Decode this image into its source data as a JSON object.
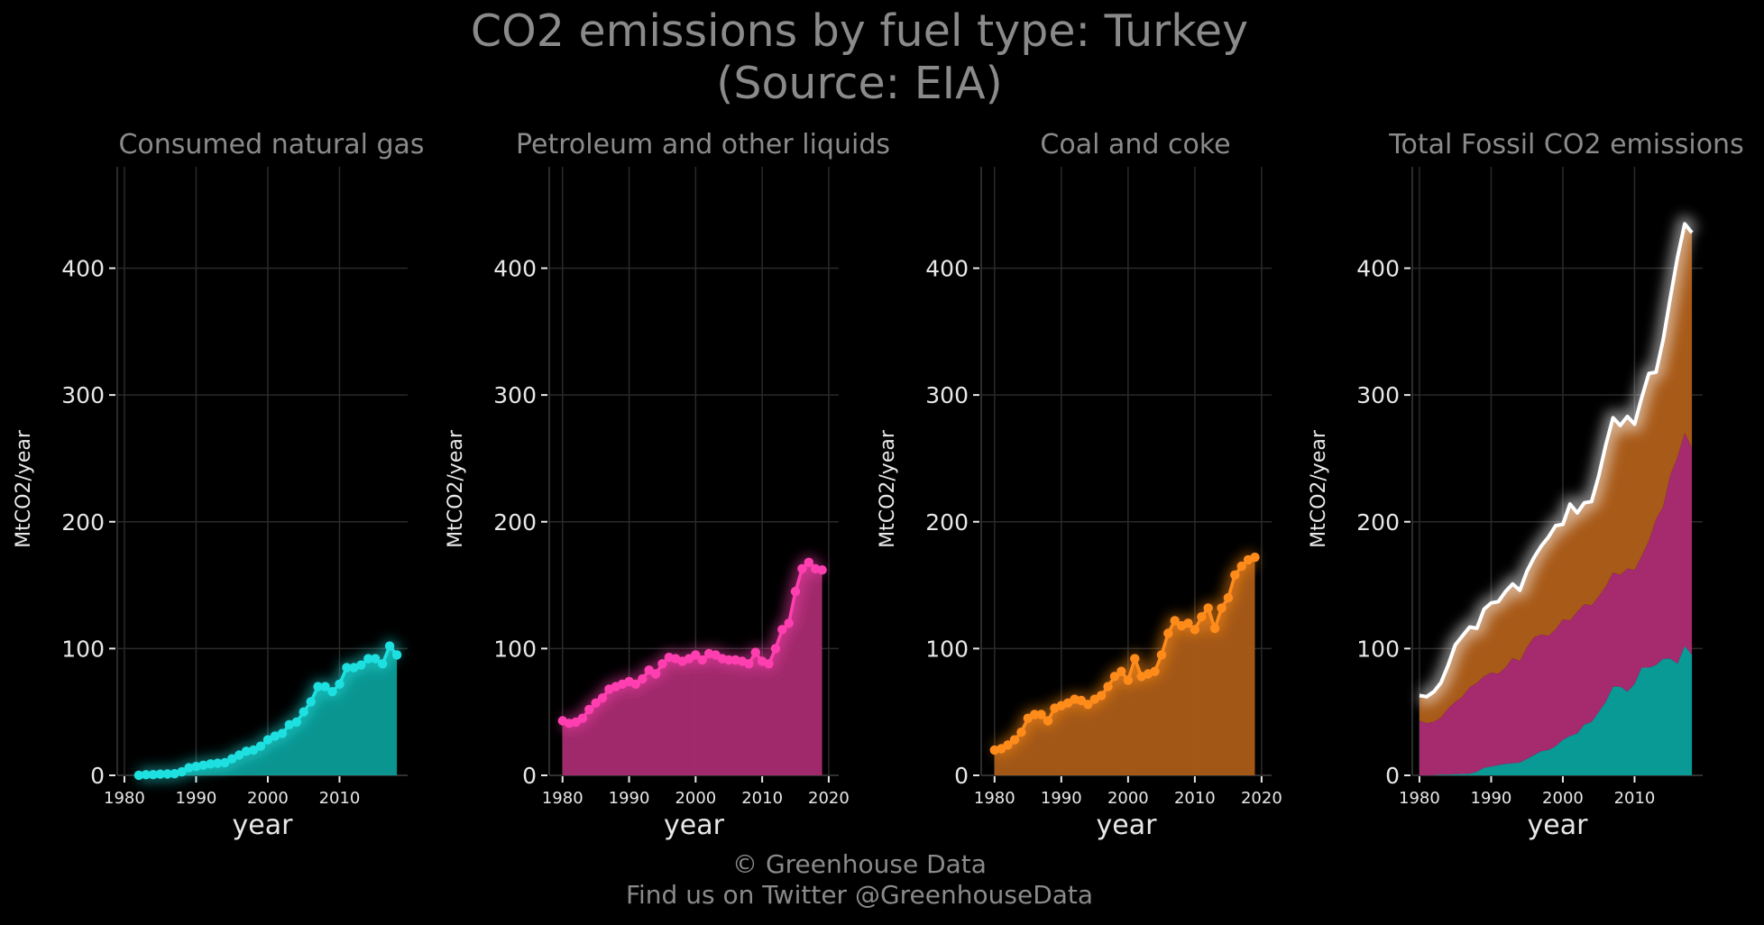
{
  "title": {
    "line1": "CO2 emissions by fuel type: Turkey",
    "line2": "(Source: EIA)"
  },
  "footer": {
    "line1": "© Greenhouse Data",
    "line2": "Find us on Twitter @GreenhouseData"
  },
  "colors": {
    "background": "#000000",
    "grid": "#2a2a2a",
    "text": "#8a8a8a",
    "tick_text": "#e8e8e8",
    "gas": "#1ee0e0",
    "gas_fill": "#0a9a96",
    "petroleum": "#ff3fb0",
    "petroleum_fill": "#a52a6e",
    "coal": "#ff8c1a",
    "coal_fill": "#a85a18",
    "total": "#ffffff"
  },
  "chart_data": [
    {
      "type": "area",
      "title": "Consumed natural gas",
      "xlabel": "year",
      "ylabel": "MtCO2/year",
      "xlim": [
        1979,
        2019.5
      ],
      "ylim": [
        0,
        480
      ],
      "xticks": [
        1980,
        1990,
        2000,
        2010
      ],
      "yticks": [
        0,
        100,
        200,
        300,
        400
      ],
      "grid": true,
      "series": [
        {
          "x": [
            1982,
            1983,
            1984,
            1985,
            1986,
            1987,
            1988,
            1989,
            1990,
            1991,
            1992,
            1993,
            1994,
            1995,
            1996,
            1997,
            1998,
            1999,
            2000,
            2001,
            2002,
            2003,
            2004,
            2005,
            2006,
            2007,
            2008,
            2009,
            2010,
            2011,
            2012,
            2013,
            2014,
            2015,
            2016,
            2017,
            2018
          ],
          "values": [
            0.1,
            0.5,
            0.6,
            0.9,
            1.1,
            1.3,
            2.8,
            6,
            7,
            8,
            9,
            9.5,
            10,
            13,
            16,
            19,
            20,
            23,
            28,
            31,
            33,
            40,
            42,
            50,
            58,
            70,
            70,
            66,
            72,
            85,
            85,
            87,
            92,
            92,
            88,
            102,
            95
          ]
        }
      ]
    },
    {
      "type": "area",
      "title": "Petroleum and other liquids",
      "xlabel": "year",
      "ylabel": "MtCO2/year",
      "xlim": [
        1978,
        2021.5
      ],
      "ylim": [
        0,
        480
      ],
      "xticks": [
        1980,
        1990,
        2000,
        2010,
        2020
      ],
      "yticks": [
        0,
        100,
        200,
        300,
        400
      ],
      "grid": true,
      "series": [
        {
          "x": [
            1980,
            1981,
            1982,
            1983,
            1984,
            1985,
            1986,
            1987,
            1988,
            1989,
            1990,
            1991,
            1992,
            1993,
            1994,
            1995,
            1996,
            1997,
            1998,
            1999,
            2000,
            2001,
            2002,
            2003,
            2004,
            2005,
            2006,
            2007,
            2008,
            2009,
            2010,
            2011,
            2012,
            2013,
            2014,
            2015,
            2016,
            2017,
            2018,
            2019
          ],
          "values": [
            43,
            41,
            42,
            45,
            52,
            57,
            61,
            68,
            70,
            72,
            74,
            72,
            76,
            83,
            80,
            88,
            93,
            92,
            90,
            92,
            95,
            91,
            96,
            95,
            92,
            91,
            91,
            90,
            88,
            97,
            90,
            88,
            100,
            115,
            120,
            145,
            163,
            168,
            163,
            162
          ]
        }
      ]
    },
    {
      "type": "area",
      "title": "Coal and coke",
      "xlabel": "year",
      "ylabel": "MtCO2/year",
      "xlim": [
        1978,
        2021.5
      ],
      "ylim": [
        0,
        480
      ],
      "xticks": [
        1980,
        1990,
        2000,
        2010,
        2020
      ],
      "yticks": [
        0,
        100,
        200,
        300,
        400
      ],
      "grid": true,
      "series": [
        {
          "x": [
            1980,
            1981,
            1982,
            1983,
            1984,
            1985,
            1986,
            1987,
            1988,
            1989,
            1990,
            1991,
            1992,
            1993,
            1994,
            1995,
            1996,
            1997,
            1998,
            1999,
            2000,
            2001,
            2002,
            2003,
            2004,
            2005,
            2006,
            2007,
            2008,
            2009,
            2010,
            2011,
            2012,
            2013,
            2014,
            2015,
            2016,
            2017,
            2018,
            2019
          ],
          "values": [
            20,
            21,
            24,
            28,
            34,
            45,
            48,
            48,
            43,
            53,
            55,
            57,
            60,
            59,
            56,
            60,
            63,
            70,
            78,
            82,
            75,
            92,
            78,
            80,
            82,
            95,
            112,
            122,
            118,
            120,
            115,
            125,
            132,
            116,
            132,
            140,
            158,
            165,
            170,
            172
          ]
        }
      ]
    },
    {
      "type": "area",
      "title": "Total Fossil CO2 emissions",
      "xlabel": "year",
      "ylabel": "MtCO2/year",
      "xlim": [
        1979,
        2019.5
      ],
      "ylim": [
        0,
        480
      ],
      "xticks": [
        1980,
        1990,
        2000,
        2010
      ],
      "yticks": [
        0,
        100,
        200,
        300,
        400
      ],
      "grid": true,
      "stacked": true,
      "x": [
        1980,
        1981,
        1982,
        1983,
        1984,
        1985,
        1986,
        1987,
        1988,
        1989,
        1990,
        1991,
        1992,
        1993,
        1994,
        1995,
        1996,
        1997,
        1998,
        1999,
        2000,
        2001,
        2002,
        2003,
        2004,
        2005,
        2006,
        2007,
        2008,
        2009,
        2010,
        2011,
        2012,
        2013,
        2014,
        2015,
        2016,
        2017,
        2018
      ],
      "series": [
        {
          "name": "gas",
          "values": [
            0,
            0,
            0.1,
            0.5,
            0.6,
            0.9,
            1.1,
            1.3,
            2.8,
            6,
            7,
            8,
            9,
            9.5,
            10,
            13,
            16,
            19,
            20,
            23,
            28,
            31,
            33,
            40,
            42,
            50,
            58,
            70,
            70,
            66,
            72,
            85,
            85,
            87,
            92,
            92,
            88,
            102,
            95
          ]
        },
        {
          "name": "petroleum",
          "values": [
            43,
            41,
            42,
            45,
            52,
            57,
            61,
            68,
            70,
            72,
            74,
            72,
            76,
            83,
            80,
            88,
            93,
            92,
            90,
            92,
            95,
            91,
            96,
            95,
            92,
            91,
            91,
            90,
            88,
            97,
            90,
            88,
            100,
            115,
            120,
            145,
            163,
            168,
            163
          ]
        },
        {
          "name": "coal",
          "values": [
            20,
            21,
            24,
            28,
            34,
            45,
            48,
            48,
            43,
            53,
            55,
            57,
            60,
            59,
            56,
            60,
            63,
            70,
            78,
            82,
            75,
            92,
            78,
            80,
            82,
            95,
            112,
            122,
            118,
            120,
            115,
            125,
            132,
            116,
            132,
            140,
            158,
            165,
            170
          ]
        },
        {
          "name": "total",
          "values": [
            63,
            62,
            66,
            73,
            87,
            103,
            110,
            117,
            116,
            131,
            136,
            137,
            145,
            151,
            146,
            161,
            172,
            181,
            188,
            197,
            198,
            214,
            207,
            215,
            216,
            236,
            261,
            282,
            276,
            283,
            277,
            298,
            317,
            318,
            344,
            377,
            409,
            435,
            428
          ]
        }
      ]
    }
  ]
}
